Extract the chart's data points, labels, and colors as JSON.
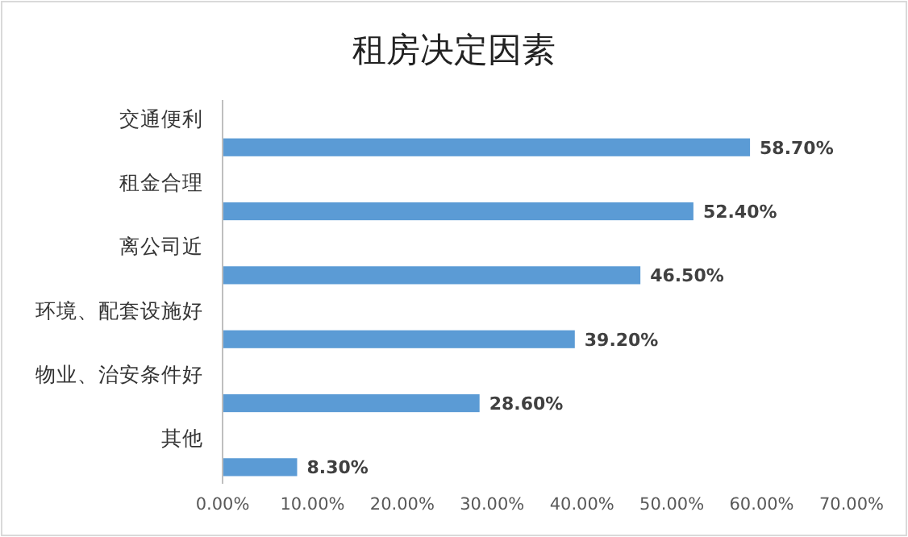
{
  "chart_data": {
    "type": "bar",
    "orientation": "horizontal",
    "title": "租房决定因素",
    "categories": [
      "交通便利",
      "租金合理",
      "离公司近",
      "环境、配套设施好",
      "物业、治安条件好",
      "其他"
    ],
    "values": [
      58.7,
      52.4,
      46.5,
      39.2,
      28.6,
      8.3
    ],
    "value_labels": [
      "58.70%",
      "52.40%",
      "46.50%",
      "39.20%",
      "28.60%",
      "8.30%"
    ],
    "color": "#5b9bd5",
    "xlim": [
      0,
      70
    ],
    "xticks": [
      {
        "value": 0,
        "label": "0.00%"
      },
      {
        "value": 10,
        "label": "10.00%"
      },
      {
        "value": 20,
        "label": "20.00%"
      },
      {
        "value": 30,
        "label": "30.00%"
      },
      {
        "value": 40,
        "label": "40.00%"
      },
      {
        "value": 50,
        "label": "50.00%"
      },
      {
        "value": 60,
        "label": "60.00%"
      },
      {
        "value": 70,
        "label": "70.00%"
      }
    ],
    "grid": false
  }
}
